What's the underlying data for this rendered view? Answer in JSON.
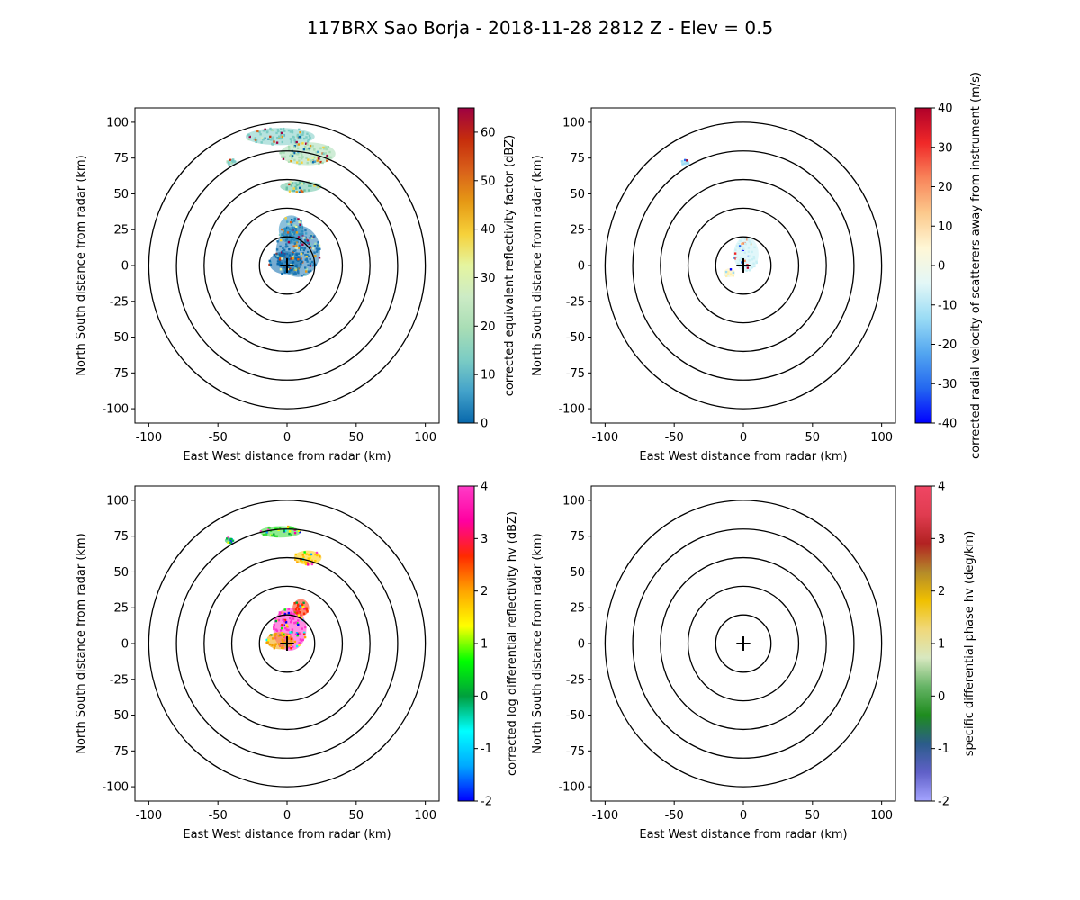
{
  "figure": {
    "title": "117BRX Sao Borja - 2018-11-28 2812 Z -  Elev = 0.5"
  },
  "chart_data": [
    {
      "type": "heatmap",
      "panel": "top-left",
      "xlabel": "East West distance from radar (km)",
      "ylabel": "North South distance from radar (km)",
      "xlim": [
        -110,
        110
      ],
      "ylim": [
        -110,
        110
      ],
      "xticks": [
        -100,
        -50,
        0,
        50,
        100
      ],
      "yticks": [
        -100,
        -75,
        -50,
        -25,
        0,
        25,
        50,
        75,
        100
      ],
      "range_rings_km": [
        20,
        40,
        60,
        80,
        100
      ],
      "colorbar": {
        "label": "corrected equivalent reflectivity factor (dBZ)",
        "range": [
          0,
          65
        ],
        "ticks": [
          0,
          10,
          20,
          30,
          40,
          50,
          60
        ],
        "colors": [
          "#0868ac",
          "#43a2ca",
          "#7bccc4",
          "#a8ddb5",
          "#ccebc5",
          "#e5f5a0",
          "#f6d13a",
          "#e69a15",
          "#d9611a",
          "#c62d0c",
          "#9e0142"
        ]
      },
      "echo_regions": [
        {
          "cx": 8,
          "cy": 10,
          "rx": 16,
          "ry": 18,
          "color": "#1f78b4"
        },
        {
          "cx": -1,
          "cy": 2,
          "rx": 12,
          "ry": 8,
          "color": "#0868ac"
        },
        {
          "cx": 3,
          "cy": 25,
          "rx": 9,
          "ry": 10,
          "color": "#2b8cbe"
        },
        {
          "cx": -5,
          "cy": 90,
          "rx": 25,
          "ry": 6,
          "color": "#7bccc4"
        },
        {
          "cx": 15,
          "cy": 78,
          "rx": 20,
          "ry": 8,
          "color": "#a8ddb5"
        },
        {
          "cx": -40,
          "cy": 72,
          "rx": 4,
          "ry": 2,
          "color": "#7bccc4"
        },
        {
          "cx": 10,
          "cy": 55,
          "rx": 15,
          "ry": 4,
          "color": "#66c2a4"
        }
      ]
    },
    {
      "type": "heatmap",
      "panel": "top-right",
      "xlabel": "East West distance from radar (km)",
      "ylabel": "North South distance from radar (km)",
      "xlim": [
        -110,
        110
      ],
      "ylim": [
        -110,
        110
      ],
      "xticks": [
        -100,
        -50,
        0,
        50,
        100
      ],
      "yticks": [
        -100,
        -75,
        -50,
        -25,
        0,
        25,
        50,
        75,
        100
      ],
      "range_rings_km": [
        20,
        40,
        60,
        80,
        100
      ],
      "colorbar": {
        "label": "corrected radial velocity of scatterers away from instrument (m/s)",
        "range": [
          -40,
          40
        ],
        "ticks": [
          -40,
          -30,
          -20,
          -10,
          0,
          10,
          20,
          30,
          40
        ],
        "colors": [
          "#0000ff",
          "#2468f0",
          "#53a6f0",
          "#9adcf5",
          "#e3f7f7",
          "#fff7d6",
          "#fcc98c",
          "#f8845a",
          "#f02828",
          "#b0002a"
        ]
      },
      "echo_regions": [
        {
          "cx": 2,
          "cy": 8,
          "rx": 9,
          "ry": 12,
          "color": "#c9f0f5"
        },
        {
          "cx": -10,
          "cy": -5,
          "rx": 4,
          "ry": 3,
          "color": "#fff0b0"
        },
        {
          "cx": -42,
          "cy": 72,
          "rx": 3,
          "ry": 2,
          "color": "#9adcf5"
        }
      ]
    },
    {
      "type": "heatmap",
      "panel": "bottom-left",
      "xlabel": "East West distance from radar (km)",
      "ylabel": "North South distance from radar (km)",
      "xlim": [
        -110,
        110
      ],
      "ylim": [
        -110,
        110
      ],
      "xticks": [
        -100,
        -50,
        0,
        50,
        100
      ],
      "yticks": [
        -100,
        -75,
        -50,
        -25,
        0,
        25,
        50,
        75,
        100
      ],
      "range_rings_km": [
        20,
        40,
        60,
        80,
        100
      ],
      "colorbar": {
        "label": "corrected log differential reflectivity hv (dBZ)",
        "range": [
          -2,
          4
        ],
        "ticks": [
          -2,
          -1,
          0,
          1,
          2,
          3,
          4
        ],
        "colors": [
          "#0000ff",
          "#00a8ff",
          "#00ffff",
          "#009f3d",
          "#00ff00",
          "#ffff00",
          "#ffa500",
          "#ff2a00",
          "#ff00a0",
          "#ff3cc8"
        ]
      },
      "echo_regions": [
        {
          "cx": 2,
          "cy": 10,
          "rx": 12,
          "ry": 15,
          "color": "#ff33cc"
        },
        {
          "cx": -5,
          "cy": 2,
          "rx": 10,
          "ry": 6,
          "color": "#f4a000"
        },
        {
          "cx": 10,
          "cy": 25,
          "rx": 6,
          "ry": 6,
          "color": "#ff2a00"
        },
        {
          "cx": -5,
          "cy": 78,
          "rx": 15,
          "ry": 4,
          "color": "#33dd33"
        },
        {
          "cx": 15,
          "cy": 60,
          "rx": 10,
          "ry": 5,
          "color": "#ffcc00"
        },
        {
          "cx": -42,
          "cy": 72,
          "rx": 3,
          "ry": 2,
          "color": "#00bb44"
        }
      ]
    },
    {
      "type": "heatmap",
      "panel": "bottom-right",
      "xlabel": "East West distance from radar (km)",
      "ylabel": "North South distance from radar (km)",
      "xlim": [
        -110,
        110
      ],
      "ylim": [
        -110,
        110
      ],
      "xticks": [
        -100,
        -50,
        0,
        50,
        100
      ],
      "yticks": [
        -100,
        -75,
        -50,
        -25,
        0,
        25,
        50,
        75,
        100
      ],
      "range_rings_km": [
        20,
        40,
        60,
        80,
        100
      ],
      "colorbar": {
        "label": "specific differential phase hv (deg/km)",
        "range": [
          -2,
          4
        ],
        "ticks": [
          -2,
          -1,
          0,
          1,
          2,
          3,
          4
        ],
        "colors": [
          "#a4a4ff",
          "#6060c8",
          "#2b5c8a",
          "#1e8c1e",
          "#66b466",
          "#d8e8c0",
          "#f0d87a",
          "#f0c000",
          "#b38a2a",
          "#b22222",
          "#e03c50",
          "#f04664"
        ]
      },
      "echo_regions": []
    }
  ]
}
